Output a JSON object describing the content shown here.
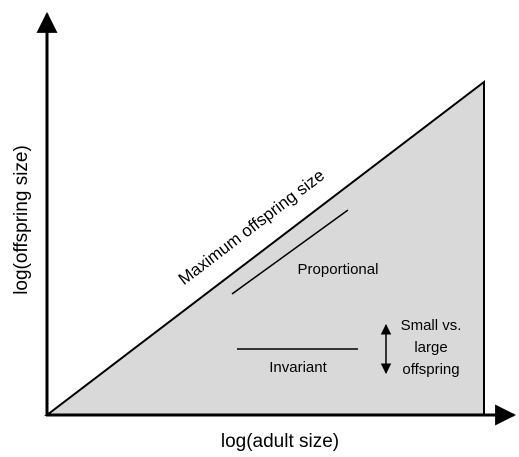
{
  "axes": {
    "x_label": "log(adult size)",
    "y_label": "log(offspring size)"
  },
  "annotations": {
    "maximum": "Maximum offspring size",
    "proportional": "Proportional",
    "invariant": "Invariant",
    "range": [
      "Small vs.",
      "large",
      "offspring"
    ]
  }
}
